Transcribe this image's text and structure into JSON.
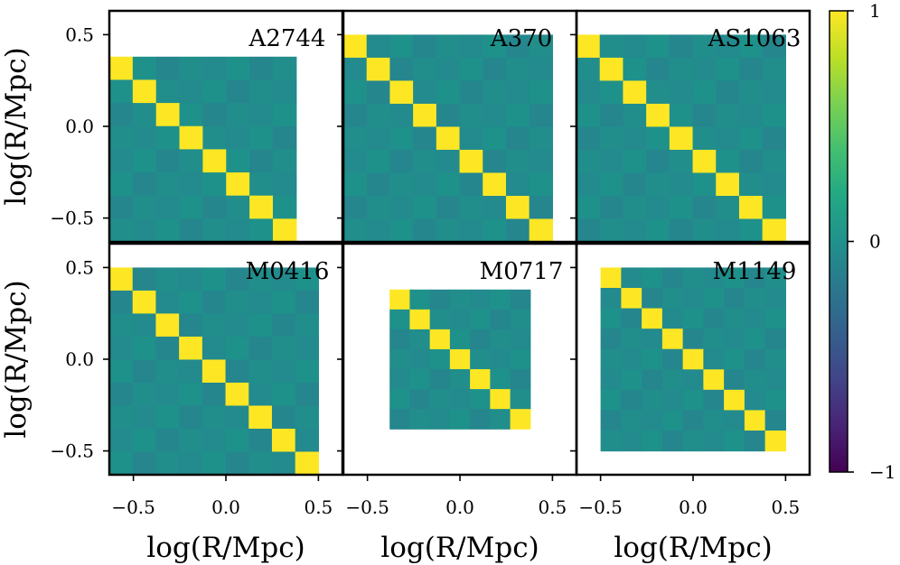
{
  "chart_data": {
    "type": "heatmap",
    "xlabel": "log(R/Mpc)",
    "ylabel": "log(R/Mpc)",
    "xlim": [
      -0.63,
      0.63
    ],
    "ylim": [
      -0.63,
      0.63
    ],
    "ticks": [
      -0.5,
      0.0,
      0.5
    ],
    "tick_labels": [
      "−0.5",
      "0.0",
      "0.5"
    ],
    "colorbar": {
      "colormap": "viridis",
      "range": [
        -1,
        1
      ],
      "ticks": [
        1,
        0,
        -1
      ],
      "tick_labels": [
        "1",
        "0",
        "−1"
      ]
    },
    "offdiagonal_value": 0.05,
    "diagonal_value": 1,
    "diag_color": "#FDE725",
    "offdiag_colors": [
      "#238A8D",
      "#218E8C",
      "#25868E",
      "#1F918B"
    ],
    "panels": [
      {
        "name": "A2744",
        "extent": [
          -0.63,
          0.38
        ],
        "n_bins": 8
      },
      {
        "name": "A370",
        "extent": [
          -0.63,
          0.5
        ],
        "n_bins": 9
      },
      {
        "name": "AS1063",
        "extent": [
          -0.63,
          0.5
        ],
        "n_bins": 9
      },
      {
        "name": "M0416",
        "extent": [
          -0.63,
          0.5
        ],
        "n_bins": 9
      },
      {
        "name": "M0717",
        "extent": [
          -0.38,
          0.38
        ],
        "n_bins": 7
      },
      {
        "name": "M1149",
        "extent": [
          -0.5,
          0.5
        ],
        "n_bins": 9
      }
    ]
  }
}
